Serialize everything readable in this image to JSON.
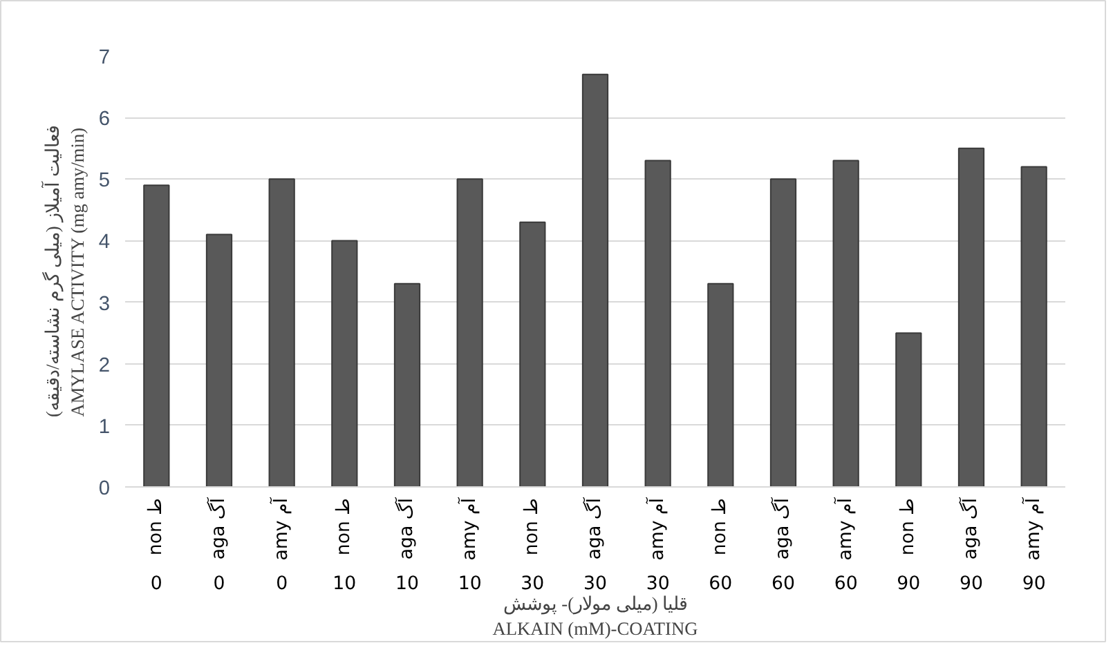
{
  "chart_data": {
    "type": "bar",
    "categories": [
      "non ط\n0",
      "aga آگ\n0",
      "amy آم\n0",
      "non ط\n10",
      "aga آگ\n10",
      "amy آم\n10",
      "non ط\n30",
      "aga آگ\n30",
      "amy آم\n30",
      "non ط\n60",
      "aga آگ\n60",
      "amy آم\n60",
      "non ط\n90",
      "aga آگ\n90",
      "amy آم\n90"
    ],
    "values": [
      4.9,
      4.1,
      5.0,
      4.0,
      3.3,
      5.0,
      4.3,
      6.7,
      5.3,
      3.3,
      5.0,
      5.3,
      2.5,
      5.5,
      5.2
    ],
    "color": "#595959",
    "annotations": [
      "قلیا (میلی مولار)- پوشش\nALKAIN (mM)-COATING"
    ],
    "ylabel": "فعالیت آمیلاز (میلی گرم نشاسته/دقیقه)\nAMYLASE ACTIVITY (mg amy/min)",
    "ylim": [
      0,
      7
    ],
    "yticks": [
      0,
      1,
      2,
      3,
      4,
      5,
      6,
      7
    ],
    "grid": "y"
  }
}
